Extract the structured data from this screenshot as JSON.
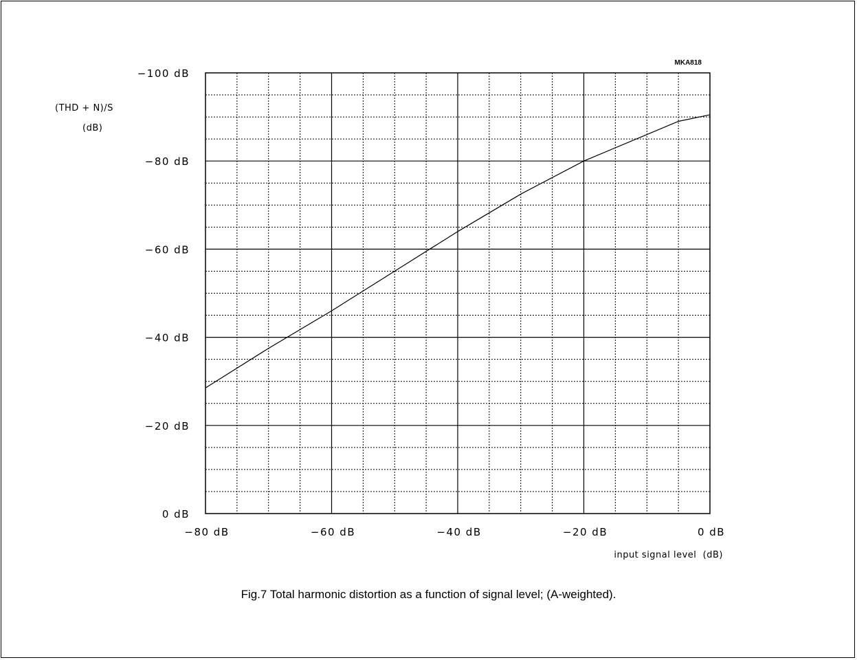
{
  "caption": "Fig.7  Total harmonic distortion as a function of signal level; (A-weighted).",
  "chart_data": {
    "type": "line",
    "figure_code": "MKA818",
    "ylabel_line1": "(THD + N)/S",
    "ylabel_line2": "(dB)",
    "xlabel": "input signal level  (dB)",
    "xlim": [
      -80,
      0
    ],
    "ylim": [
      0,
      -100
    ],
    "x_ticks": [
      -80,
      -60,
      -40,
      -20,
      0
    ],
    "x_tick_labels": [
      "−80 dB",
      "−60 dB",
      "−40 dB",
      "−20 dB",
      "0 dB"
    ],
    "y_ticks": [
      0,
      -20,
      -40,
      -60,
      -80,
      -100
    ],
    "y_tick_labels": [
      "0 dB",
      "−20 dB",
      "−40 dB",
      "−60 dB",
      "−80 dB",
      "−100 dB"
    ],
    "grid": true,
    "series": [
      {
        "x": [
          -80,
          -70,
          -60,
          -50,
          -40,
          -30,
          -20,
          -10,
          -5,
          0
        ],
        "y": [
          -28.5,
          -37.5,
          -46,
          -55,
          -64,
          -72.5,
          -80,
          -86,
          -89,
          -90.5
        ]
      }
    ]
  }
}
